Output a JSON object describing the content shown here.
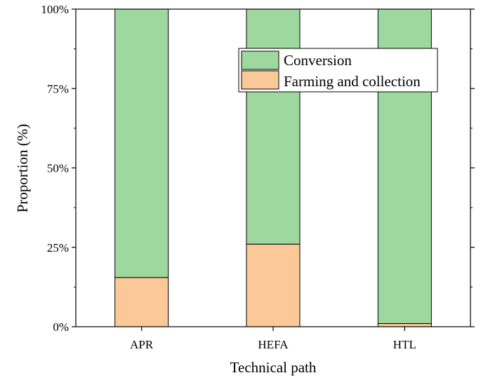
{
  "chart_data": {
    "type": "bar",
    "stacked": true,
    "title": "",
    "xlabel": "Technical path",
    "ylabel": "Proportion (%)",
    "categories": [
      "APR",
      "HEFA",
      "HTL"
    ],
    "series": [
      {
        "name": "Farming and collection",
        "values": [
          15.5,
          26,
          1
        ],
        "color": "#FBC898"
      },
      {
        "name": "Conversion",
        "values": [
          84.5,
          74,
          99
        ],
        "color": "#9FD89E"
      }
    ],
    "ylim": [
      0,
      100
    ],
    "yticks": [
      0,
      25,
      50,
      75,
      100
    ],
    "ytick_labels": [
      "0%",
      "25%",
      "50%",
      "75%",
      "100%"
    ],
    "legend": {
      "placement": "top-right",
      "entries": [
        "Conversion",
        "Farming and collection"
      ]
    },
    "grid": false
  }
}
